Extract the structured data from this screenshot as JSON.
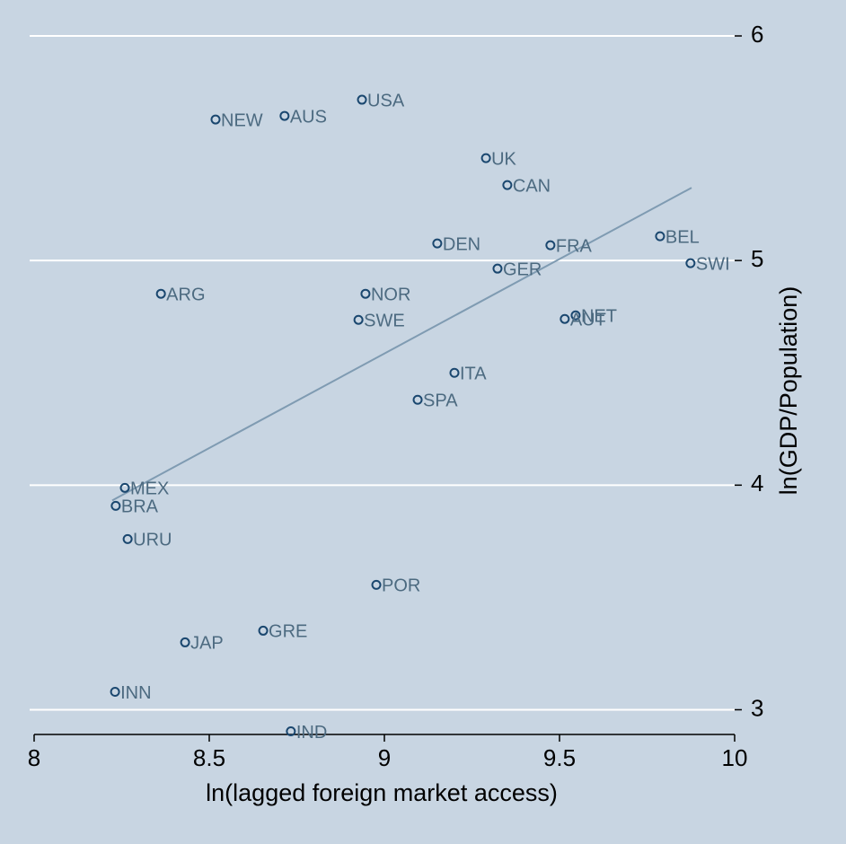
{
  "chart_data": {
    "type": "scatter",
    "x_label": "ln(lagged foreign market access)",
    "y_label": "ln(GDP/Population)",
    "xlim": [
      8,
      10
    ],
    "ylim": [
      2.89,
      6.1
    ],
    "xticks": [
      8,
      8.5,
      9,
      9.5,
      10
    ],
    "yticks": [
      3,
      4,
      5,
      6
    ],
    "grid": true,
    "marker_color": "#1a476f",
    "fit_color": "#7f9bb2",
    "labels": [
      "NEW",
      "AUS",
      "USA",
      "UK",
      "CAN",
      "DEN",
      "FRA",
      "BEL",
      "SWI",
      "GER",
      "ARG",
      "NOR",
      "SWE",
      "NET",
      "AUT",
      "ITA",
      "SPA",
      "MEX",
      "BRA",
      "URU",
      "POR",
      "GRE",
      "JAP",
      "INN",
      "IND"
    ],
    "x": [
      8.518,
      8.715,
      8.936,
      9.29,
      9.351,
      9.151,
      9.474,
      9.787,
      9.874,
      9.323,
      8.362,
      8.946,
      8.926,
      9.546,
      9.515,
      9.2,
      9.095,
      8.259,
      8.233,
      8.267,
      8.977,
      8.654,
      8.431,
      8.231,
      8.733
    ],
    "y": [
      5.628,
      5.644,
      5.716,
      5.456,
      5.336,
      5.076,
      5.068,
      5.108,
      4.988,
      4.964,
      4.852,
      4.852,
      4.736,
      4.756,
      4.74,
      4.5,
      4.38,
      3.988,
      3.908,
      3.76,
      3.556,
      3.352,
      3.3,
      3.08,
      2.904
    ],
    "fit": {
      "x": [
        8.223,
        9.877
      ],
      "y": [
        3.932,
        5.324
      ]
    }
  }
}
